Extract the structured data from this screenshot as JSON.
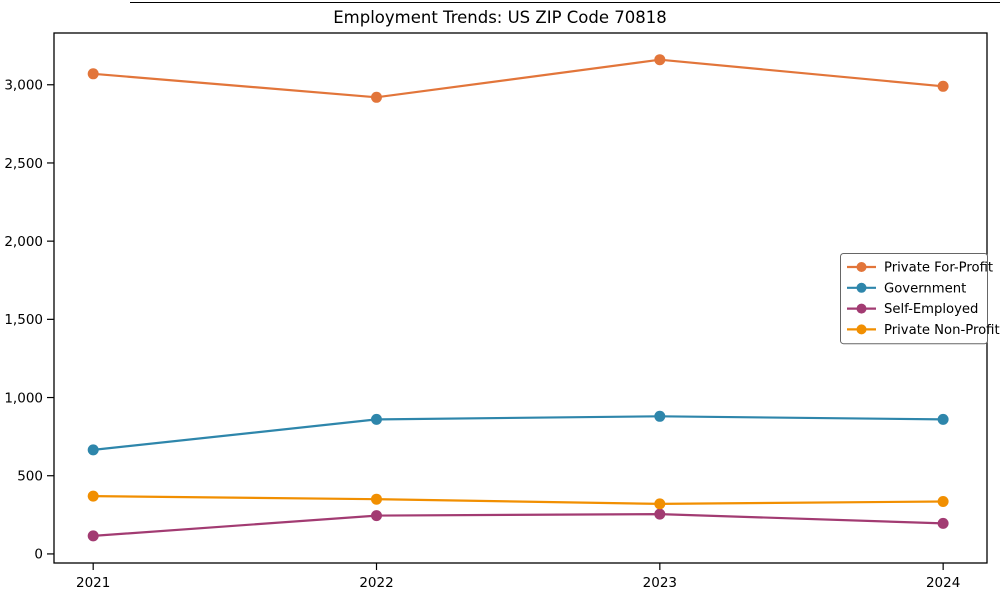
{
  "figure": {
    "background": "#ffffff",
    "border_color": "#000000"
  },
  "chart_data": {
    "type": "line",
    "title": "Employment Trends: US ZIP Code 70818",
    "categories": [
      "2021",
      "2022",
      "2023",
      "2024"
    ],
    "series": [
      {
        "name": "Private For-Profit",
        "color": "#E2753A",
        "values": [
          3070,
          2920,
          3160,
          2990
        ]
      },
      {
        "name": "Government",
        "color": "#2E86AB",
        "values": [
          665,
          860,
          880,
          860
        ]
      },
      {
        "name": "Self-Employed",
        "color": "#A23B72",
        "values": [
          115,
          245,
          255,
          195
        ]
      },
      {
        "name": "Private Non-Profit",
        "color": "#F18F01",
        "values": [
          370,
          350,
          320,
          335
        ]
      }
    ],
    "xlabel": "",
    "ylabel": "",
    "ylim": [
      -58,
      3331
    ],
    "yticks": [
      0,
      500,
      1000,
      1500,
      2000,
      2500,
      3000
    ],
    "ytick_labels": [
      "0",
      "500",
      "1,000",
      "1,500",
      "2,000",
      "2,500",
      "3,000"
    ],
    "grid": false,
    "legend": {
      "position": "center-right",
      "border_color": "#666666",
      "background": "#ffffff"
    },
    "marker": "circle",
    "line_width": 2.2,
    "marker_radius": 5.5,
    "axis_color": "#000000"
  }
}
